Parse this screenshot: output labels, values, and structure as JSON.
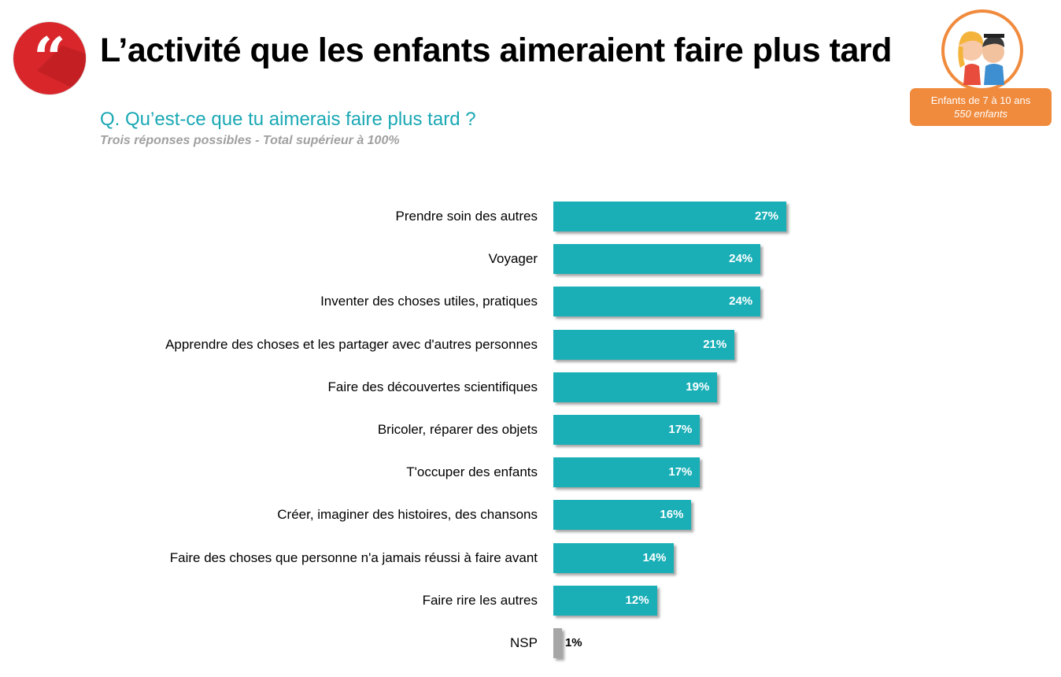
{
  "header": {
    "title": "L’activité que les enfants aimeraient faire plus tard",
    "question": "Q. Qu’est-ce que tu aimerais faire plus tard ?",
    "note": "Trois réponses possibles - Total supérieur à 100%",
    "quote_icon": "quote-icon"
  },
  "sample": {
    "line1": "Enfants de 7 à 10 ans",
    "line2": "550 enfants",
    "icon": "children-icon"
  },
  "colors": {
    "bar": "#1aafb7",
    "nsp_bar": "#a6a6a6",
    "accent_red": "#d8262b",
    "question": "#1aa8b4",
    "sample_box": "#f08a3c"
  },
  "chart_data": {
    "type": "bar",
    "orientation": "horizontal",
    "categories": [
      "Prendre soin des autres",
      "Voyager",
      "Inventer des choses utiles, pratiques",
      "Apprendre des choses et les partager avec d'autres personnes",
      "Faire des découvertes scientifiques",
      "Bricoler, réparer des objets",
      "T'occuper des enfants",
      "Créer, imaginer des histoires, des chansons",
      "Faire des choses que personne n'a jamais réussi à faire avant",
      "Faire rire les autres",
      "NSP"
    ],
    "values": [
      27,
      24,
      24,
      21,
      19,
      17,
      17,
      16,
      14,
      12,
      1
    ],
    "value_labels": [
      "27%",
      "24%",
      "24%",
      "21%",
      "19%",
      "17%",
      "17%",
      "16%",
      "14%",
      "12%",
      "1%"
    ],
    "unit": "%",
    "grid": false,
    "legend": "none"
  }
}
